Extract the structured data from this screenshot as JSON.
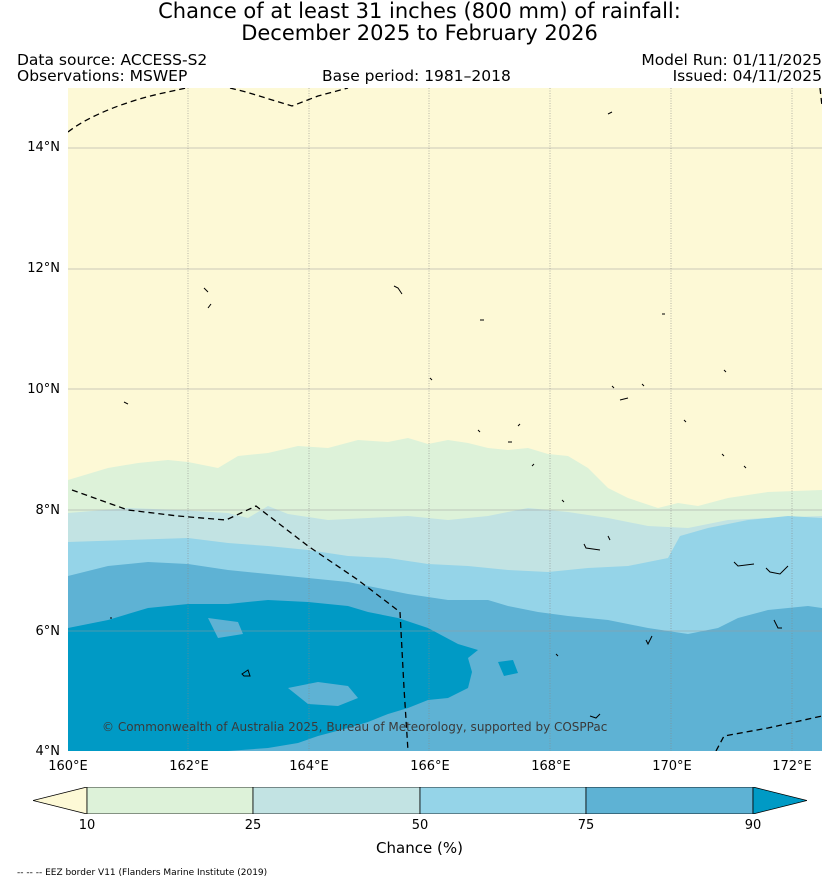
{
  "title": {
    "line1": "Chance of at least 31 inches (800  mm) of rainfall:",
    "line2": "December 2025 to February 2026"
  },
  "meta": {
    "data_source": "Data source: ACCESS-S2",
    "observations": "Observations: MSWEP",
    "base_period": "Base period: 1981–2018",
    "model_run": "Model Run: 01/11/2025",
    "issued": "Issued: 04/11/2025"
  },
  "axes": {
    "lat_labels": [
      "14°N",
      "12°N",
      "10°N",
      "8°N",
      "6°N",
      "4°N"
    ],
    "lon_labels": [
      "160°E",
      "162°E",
      "164°E",
      "166°E",
      "168°E",
      "170°E",
      "172°E"
    ],
    "lat_range": [
      4,
      15
    ],
    "lon_range": [
      160,
      172.5
    ]
  },
  "copyright": "© Commonwealth of Australia 2025, Bureau of Meteorology, supported by COSPPac",
  "colorbar": {
    "title": "Chance (%)",
    "ticks": [
      "10",
      "25",
      "50",
      "75",
      "90"
    ],
    "colors": [
      "#fdf9d6",
      "#ddf2d9",
      "#c2e3e3",
      "#95d4e8",
      "#5eb2d4",
      "#009ac5"
    ]
  },
  "legend_eez": "-- -- -- EEZ border V11 (Flanders Marine Institute (2019)"
}
